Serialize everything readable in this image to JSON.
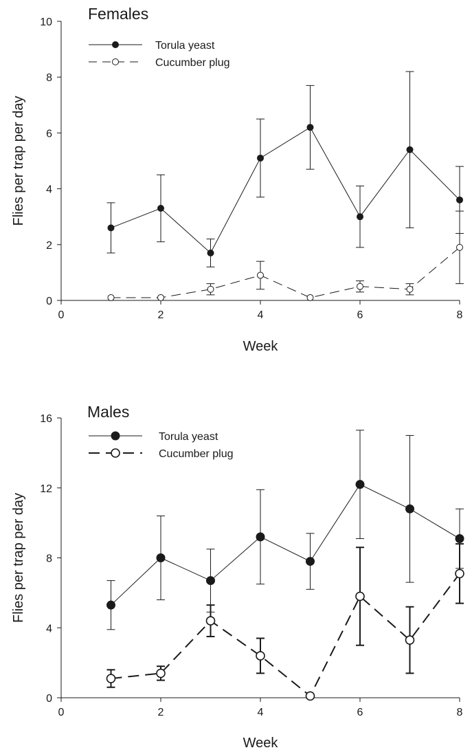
{
  "chart_data": [
    {
      "type": "line",
      "title": "Females",
      "xlabel": "Week",
      "ylabel": "Flies per trap per day",
      "xlim": [
        0,
        8
      ],
      "ylim": [
        0,
        10
      ],
      "xticks": [
        0,
        2,
        4,
        6,
        8
      ],
      "yticks": [
        0,
        2,
        4,
        6,
        8,
        10
      ],
      "grid": false,
      "legend_position": "top-left",
      "x": [
        1,
        2,
        3,
        4,
        5,
        6,
        7,
        8
      ],
      "series": [
        {
          "name": "Torula yeast",
          "marker": "filled-circle",
          "line": "solid",
          "values": [
            2.6,
            3.3,
            1.7,
            5.1,
            6.2,
            3.0,
            5.4,
            3.6
          ],
          "err_low": [
            1.7,
            2.1,
            1.2,
            3.7,
            4.7,
            1.9,
            2.6,
            2.4
          ],
          "err_high": [
            3.5,
            4.5,
            2.2,
            6.5,
            7.7,
            4.1,
            8.2,
            4.8
          ]
        },
        {
          "name": "Cucumber plug",
          "marker": "open-circle",
          "line": "dashed",
          "values": [
            0.1,
            0.1,
            0.4,
            0.9,
            0.1,
            0.5,
            0.4,
            1.9
          ],
          "err_low": [
            0.1,
            0.1,
            0.2,
            0.4,
            0.1,
            0.3,
            0.2,
            0.6
          ],
          "err_high": [
            0.1,
            0.1,
            0.6,
            1.4,
            0.1,
            0.7,
            0.6,
            3.2
          ]
        }
      ]
    },
    {
      "type": "line",
      "title": "Males",
      "xlabel": "Week",
      "ylabel": "Flies per trap per day",
      "xlim": [
        0,
        8
      ],
      "ylim": [
        0,
        16
      ],
      "xticks": [
        0,
        2,
        4,
        6,
        8
      ],
      "yticks": [
        0,
        4,
        8,
        12,
        16
      ],
      "grid": false,
      "legend_position": "top-left",
      "x": [
        1,
        2,
        3,
        4,
        5,
        6,
        7,
        8
      ],
      "series": [
        {
          "name": "Torula yeast",
          "marker": "filled-circle",
          "line": "solid",
          "values": [
            5.3,
            8.0,
            6.7,
            9.2,
            7.8,
            12.2,
            10.8,
            9.1
          ],
          "err_low": [
            3.9,
            5.6,
            4.9,
            6.5,
            6.2,
            9.1,
            6.6,
            7.4
          ],
          "err_high": [
            6.7,
            10.4,
            8.5,
            11.9,
            9.4,
            15.3,
            15.0,
            10.8
          ]
        },
        {
          "name": "Cucumber plug",
          "marker": "open-circle",
          "line": "dashed",
          "values": [
            1.1,
            1.4,
            4.4,
            2.4,
            0.1,
            5.8,
            3.3,
            7.1
          ],
          "err_low": [
            0.6,
            1.0,
            3.5,
            1.4,
            0.1,
            3.0,
            1.4,
            5.4
          ],
          "err_high": [
            1.6,
            1.8,
            5.3,
            3.4,
            0.1,
            8.6,
            5.2,
            8.8
          ]
        }
      ]
    }
  ]
}
